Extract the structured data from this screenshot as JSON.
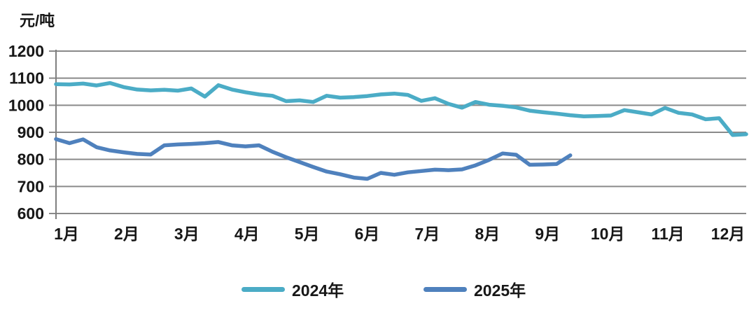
{
  "unit_label": "元/吨",
  "chart_data": {
    "type": "line",
    "title": "",
    "xlabel": "",
    "ylabel": "元/吨",
    "ylim": [
      600,
      1200
    ],
    "yticks": [
      1200,
      1100,
      1000,
      900,
      800,
      700,
      600
    ],
    "categories": [
      "1月",
      "2月",
      "3月",
      "4月",
      "5月",
      "6月",
      "7月",
      "8月",
      "9月",
      "10月",
      "11月",
      "12月"
    ],
    "grid": "horizontal",
    "legend_position": "bottom",
    "series": [
      {
        "name": "2024年",
        "color": "#4BACC6",
        "values": [
          1078,
          1077,
          1080,
          1073,
          1082,
          1067,
          1058,
          1055,
          1057,
          1054,
          1062,
          1032,
          1074,
          1058,
          1048,
          1040,
          1035,
          1015,
          1018,
          1012,
          1035,
          1028,
          1030,
          1034,
          1040,
          1043,
          1038,
          1016,
          1026,
          1005,
          991,
          1012,
          1002,
          998,
          992,
          980,
          974,
          969,
          963,
          959,
          960,
          962,
          982,
          974,
          966,
          990,
          972,
          966,
          948,
          952,
          890,
          893
        ]
      },
      {
        "name": "2025年",
        "color": "#4F81BD",
        "values": [
          875,
          860,
          874,
          845,
          833,
          826,
          820,
          818,
          852,
          855,
          857,
          860,
          864,
          852,
          848,
          852,
          828,
          808,
          790,
          772,
          755,
          745,
          733,
          728,
          750,
          743,
          752,
          757,
          762,
          760,
          763,
          778,
          798,
          822,
          817,
          780,
          781,
          783,
          815
        ]
      }
    ]
  }
}
